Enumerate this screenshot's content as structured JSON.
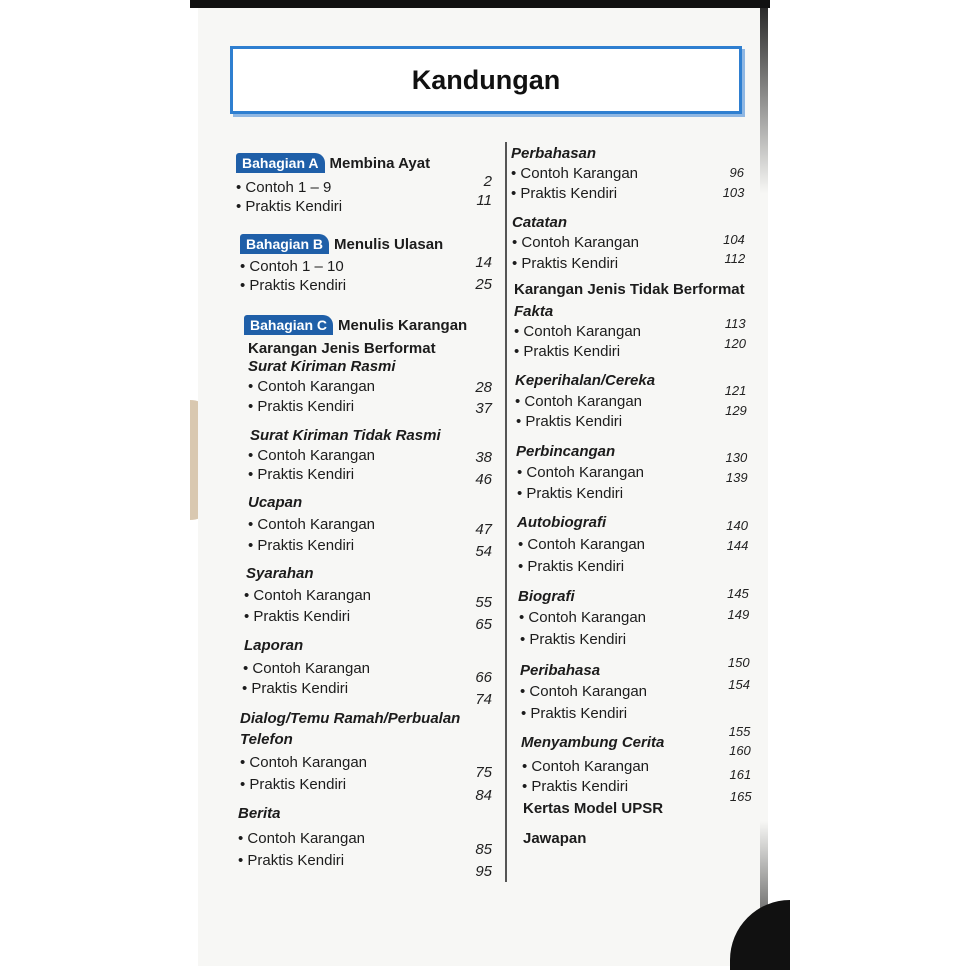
{
  "title": "Kandungan",
  "left_column": {
    "rows": [
      {
        "type": "badge",
        "badge": "Bahagian A",
        "text": "Membina Ayat"
      },
      {
        "type": "bullet",
        "text": "Contoh 1 – 9"
      },
      {
        "type": "bullet",
        "text": "Praktis Kendiri"
      },
      {
        "type": "badge",
        "badge": "Bahagian B",
        "text": "Menulis Ulasan"
      },
      {
        "type": "bullet",
        "text": "Contoh 1 – 10"
      },
      {
        "type": "bullet",
        "text": "Praktis Kendiri"
      },
      {
        "type": "badge",
        "badge": "Bahagian C",
        "text": "Menulis Karangan"
      },
      {
        "type": "bold",
        "text": "Karangan Jenis Berformat"
      },
      {
        "type": "italic",
        "text": "Surat Kiriman Rasmi"
      },
      {
        "type": "bullet",
        "text": "Contoh Karangan"
      },
      {
        "type": "bullet",
        "text": "Praktis Kendiri"
      },
      {
        "type": "italic",
        "text": "Surat Kiriman Tidak Rasmi"
      },
      {
        "type": "bullet",
        "text": "Contoh Karangan"
      },
      {
        "type": "bullet",
        "text": "Praktis Kendiri"
      },
      {
        "type": "italic",
        "text": "Ucapan"
      },
      {
        "type": "bullet",
        "text": "Contoh Karangan"
      },
      {
        "type": "bullet",
        "text": "Praktis Kendiri"
      },
      {
        "type": "italic",
        "text": "Syarahan"
      },
      {
        "type": "bullet",
        "text": "Contoh Karangan"
      },
      {
        "type": "bullet",
        "text": "Praktis Kendiri"
      },
      {
        "type": "italic",
        "text": "Laporan"
      },
      {
        "type": "bullet",
        "text": "Contoh Karangan"
      },
      {
        "type": "bullet",
        "text": "Praktis Kendiri"
      },
      {
        "type": "italic",
        "text": "Dialog/Temu Ramah/Perbualan"
      },
      {
        "type": "italic",
        "text": "Telefon"
      },
      {
        "type": "bullet",
        "text": "Contoh Karangan"
      },
      {
        "type": "bullet",
        "text": "Praktis Kendiri"
      },
      {
        "type": "italic",
        "text": "Berita"
      },
      {
        "type": "bullet",
        "text": "Contoh Karangan"
      },
      {
        "type": "bullet",
        "text": "Praktis Kendiri"
      }
    ],
    "page_numbers": [
      "2",
      "11",
      "14",
      "25",
      "28",
      "37",
      "38",
      "46",
      "47",
      "54",
      "55",
      "65",
      "66",
      "74",
      "75",
      "84",
      "85",
      "95"
    ]
  },
  "right_column": {
    "rows": [
      {
        "type": "italic",
        "text": "Perbahasan"
      },
      {
        "type": "bullet",
        "text": "Contoh Karangan"
      },
      {
        "type": "bullet",
        "text": "Praktis Kendiri"
      },
      {
        "type": "italic",
        "text": "Catatan"
      },
      {
        "type": "bullet",
        "text": "Contoh Karangan"
      },
      {
        "type": "bullet",
        "text": "Praktis Kendiri"
      },
      {
        "type": "bold",
        "text": "Karangan Jenis Tidak Berformat"
      },
      {
        "type": "italic",
        "text": "Fakta"
      },
      {
        "type": "bullet",
        "text": "Contoh Karangan"
      },
      {
        "type": "bullet",
        "text": "Praktis Kendiri"
      },
      {
        "type": "italic",
        "text": "Keperihalan/Cereka"
      },
      {
        "type": "bullet",
        "text": "Contoh Karangan"
      },
      {
        "type": "bullet",
        "text": "Praktis Kendiri"
      },
      {
        "type": "italic",
        "text": "Perbincangan"
      },
      {
        "type": "bullet",
        "text": "Contoh Karangan"
      },
      {
        "type": "bullet",
        "text": "Praktis Kendiri"
      },
      {
        "type": "italic",
        "text": "Autobiografi"
      },
      {
        "type": "bullet",
        "text": "Contoh Karangan"
      },
      {
        "type": "bullet",
        "text": "Praktis Kendiri"
      },
      {
        "type": "italic",
        "text": "Biografi"
      },
      {
        "type": "bullet",
        "text": "Contoh Karangan"
      },
      {
        "type": "bullet",
        "text": "Praktis Kendiri"
      },
      {
        "type": "italic",
        "text": "Peribahasa"
      },
      {
        "type": "bullet",
        "text": "Contoh Karangan"
      },
      {
        "type": "bullet",
        "text": "Praktis Kendiri"
      },
      {
        "type": "italic",
        "text": "Menyambung Cerita"
      },
      {
        "type": "bullet",
        "text": "Contoh Karangan"
      },
      {
        "type": "bullet",
        "text": "Praktis Kendiri"
      },
      {
        "type": "bold",
        "text": "Kertas Model UPSR"
      },
      {
        "type": "bold",
        "text": "Jawapan"
      }
    ],
    "page_numbers": [
      "96",
      "103",
      "104",
      "112",
      "113",
      "120",
      "121",
      "129",
      "130",
      "139",
      "140",
      "144",
      "145",
      "149",
      "150",
      "154",
      "155",
      "160",
      "161",
      "165"
    ]
  },
  "colors": {
    "accent": "#2f7fd0",
    "badge": "#1f5fa8"
  }
}
